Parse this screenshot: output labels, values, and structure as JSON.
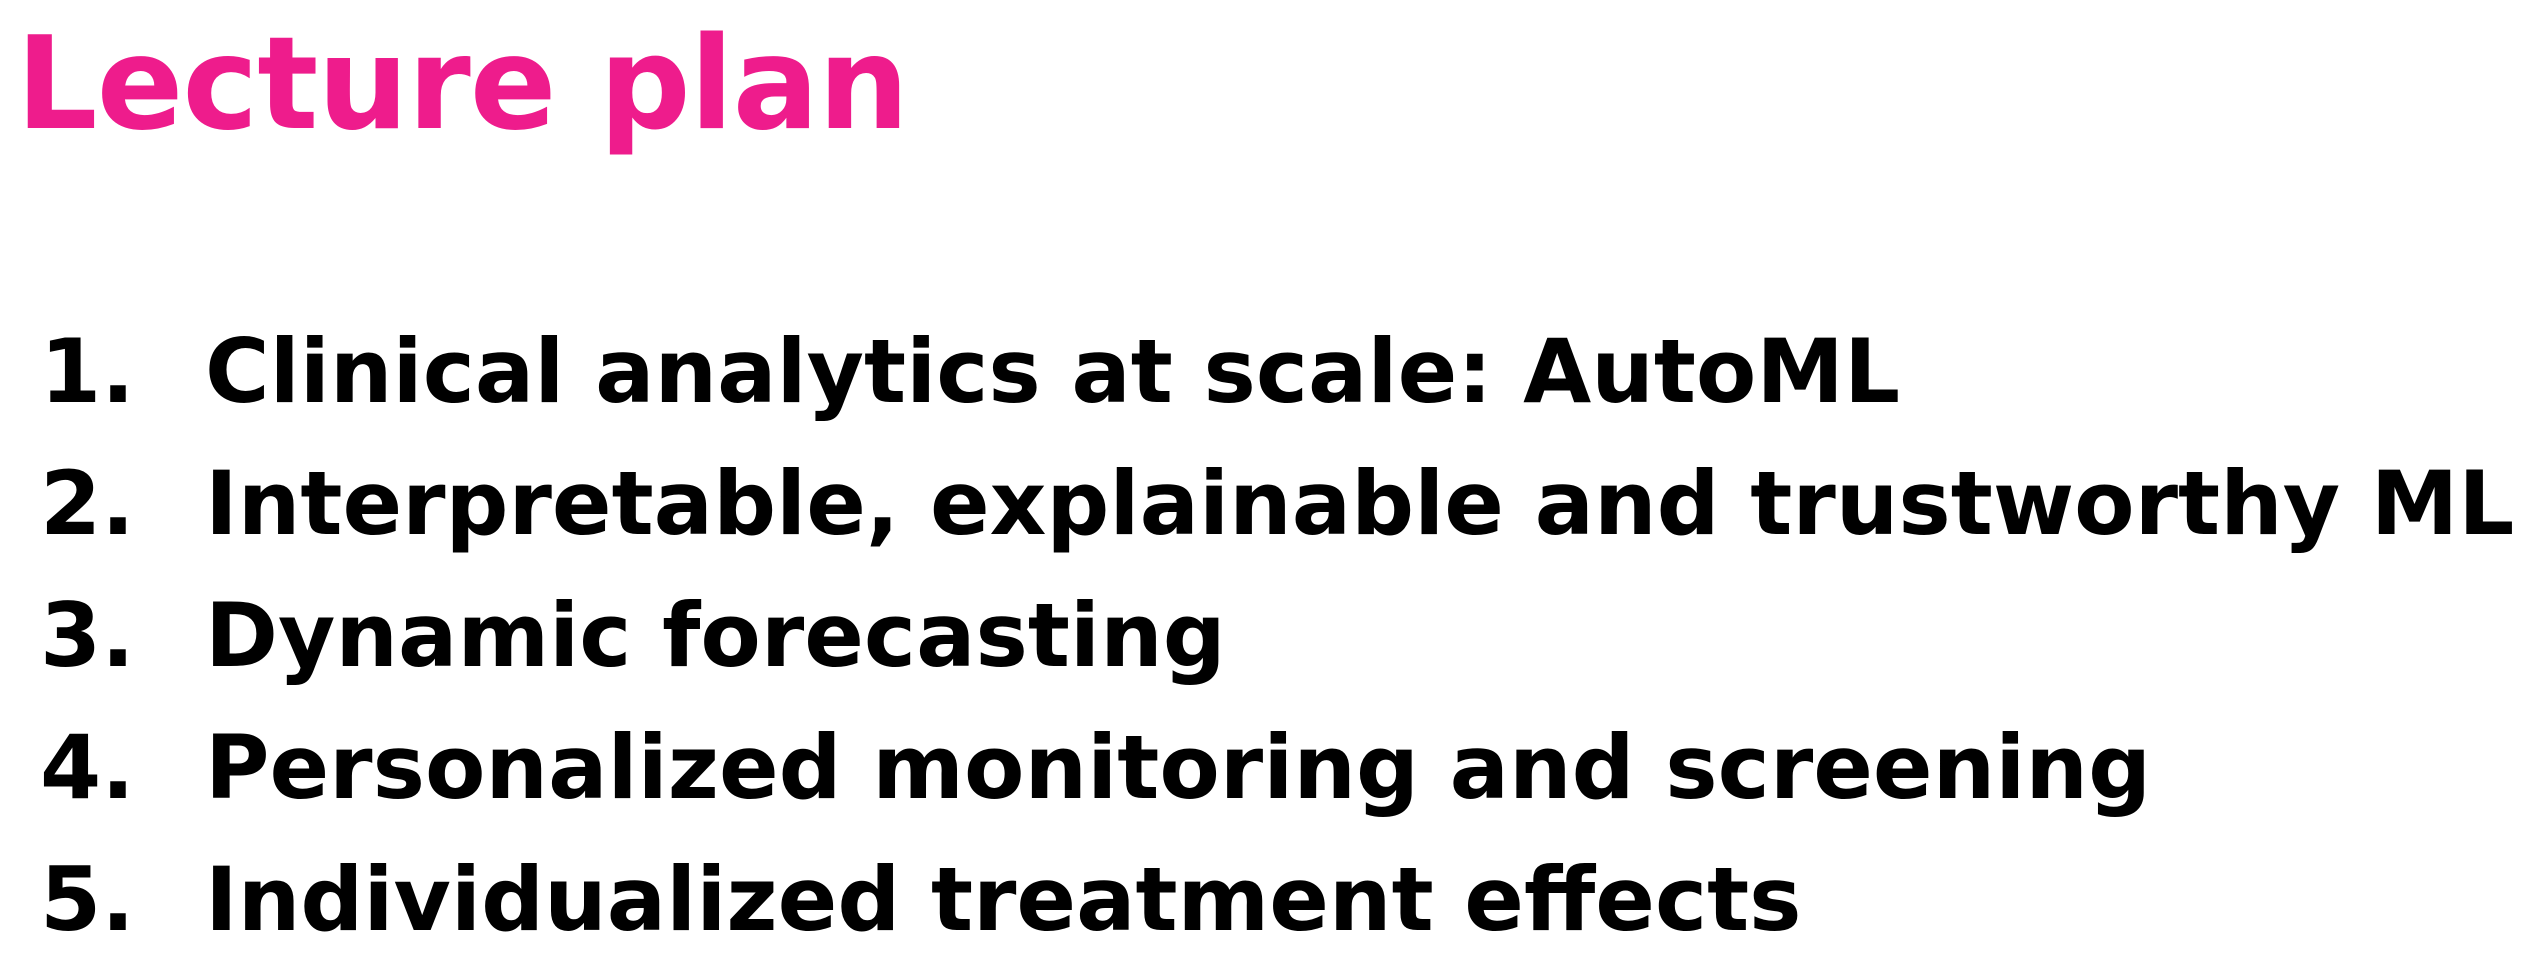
{
  "slide": {
    "title": "Lecture plan",
    "items": [
      {
        "number": "1.",
        "text": "Clinical analytics at scale: AutoML"
      },
      {
        "number": "2.",
        "text": "Interpretable, explainable and trustworthy ML"
      },
      {
        "number": "3.",
        "text": "Dynamic forecasting"
      },
      {
        "number": "4.",
        "text": "Personalized monitoring and screening"
      },
      {
        "number": "5.",
        "text": "Individualized treatment effects"
      }
    ]
  },
  "colors": {
    "title": "#ee1c8c",
    "body_text": "#000000",
    "background": "#ffffff"
  }
}
